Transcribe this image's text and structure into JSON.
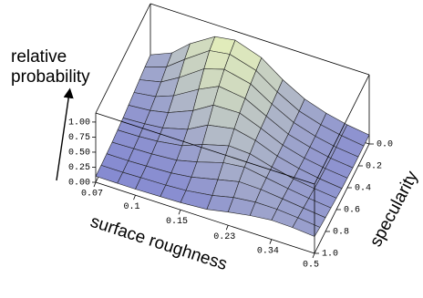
{
  "chart_data": {
    "type": "surface",
    "x_label": "surface roughness",
    "y_label": "specularity",
    "z_label": [
      "relative",
      "probability"
    ],
    "log_x": true,
    "x": [
      0.07,
      0.085,
      0.1,
      0.125,
      0.15,
      0.19,
      0.23,
      0.28,
      0.34,
      0.41,
      0.5
    ],
    "y": [
      0,
      0.1,
      0.2,
      0.3,
      0.4,
      0.5,
      0.6,
      0.7,
      0.8,
      0.9,
      1
    ],
    "z": [
      [
        0.3,
        0.45,
        0.7,
        0.95,
        1.0,
        0.85,
        0.6,
        0.4,
        0.28,
        0.2,
        0.15
      ],
      [
        0.28,
        0.4,
        0.62,
        0.9,
        0.95,
        0.82,
        0.58,
        0.38,
        0.27,
        0.2,
        0.15
      ],
      [
        0.25,
        0.33,
        0.5,
        0.78,
        0.88,
        0.78,
        0.56,
        0.37,
        0.26,
        0.19,
        0.15
      ],
      [
        0.22,
        0.27,
        0.38,
        0.62,
        0.78,
        0.72,
        0.54,
        0.36,
        0.26,
        0.19,
        0.15
      ],
      [
        0.19,
        0.22,
        0.28,
        0.45,
        0.65,
        0.66,
        0.52,
        0.36,
        0.26,
        0.2,
        0.16
      ],
      [
        0.16,
        0.18,
        0.21,
        0.32,
        0.5,
        0.58,
        0.5,
        0.36,
        0.27,
        0.21,
        0.17
      ],
      [
        0.14,
        0.15,
        0.17,
        0.23,
        0.36,
        0.48,
        0.46,
        0.36,
        0.28,
        0.23,
        0.19
      ],
      [
        0.12,
        0.13,
        0.14,
        0.17,
        0.25,
        0.38,
        0.42,
        0.36,
        0.3,
        0.25,
        0.21
      ],
      [
        0.11,
        0.11,
        0.12,
        0.14,
        0.18,
        0.28,
        0.36,
        0.35,
        0.31,
        0.27,
        0.23
      ],
      [
        0.1,
        0.1,
        0.11,
        0.12,
        0.14,
        0.2,
        0.28,
        0.32,
        0.32,
        0.29,
        0.25
      ],
      [
        0.1,
        0.1,
        0.1,
        0.11,
        0.12,
        0.15,
        0.22,
        0.28,
        0.32,
        0.31,
        0.28
      ]
    ],
    "xlim": [
      0.07,
      0.5
    ],
    "ylim": [
      0,
      1
    ],
    "zlim": [
      0,
      1.15
    ],
    "xticks": [
      0.07,
      0.1,
      0.15,
      0.23,
      0.34,
      0.5
    ],
    "yticks": [
      {
        "value": 0,
        "label": "0.0"
      },
      0.2,
      0.4,
      0.6,
      0.8,
      {
        "value": 1,
        "label": "1.0"
      }
    ],
    "zticks": [
      {
        "value": 0,
        "label": "0.00"
      },
      0.25,
      {
        "value": 0.5,
        "label": "0.50"
      },
      0.75,
      {
        "value": 1,
        "label": "1.00"
      }
    ],
    "color_low": "#7c80d4",
    "color_high": "#eefab8"
  }
}
